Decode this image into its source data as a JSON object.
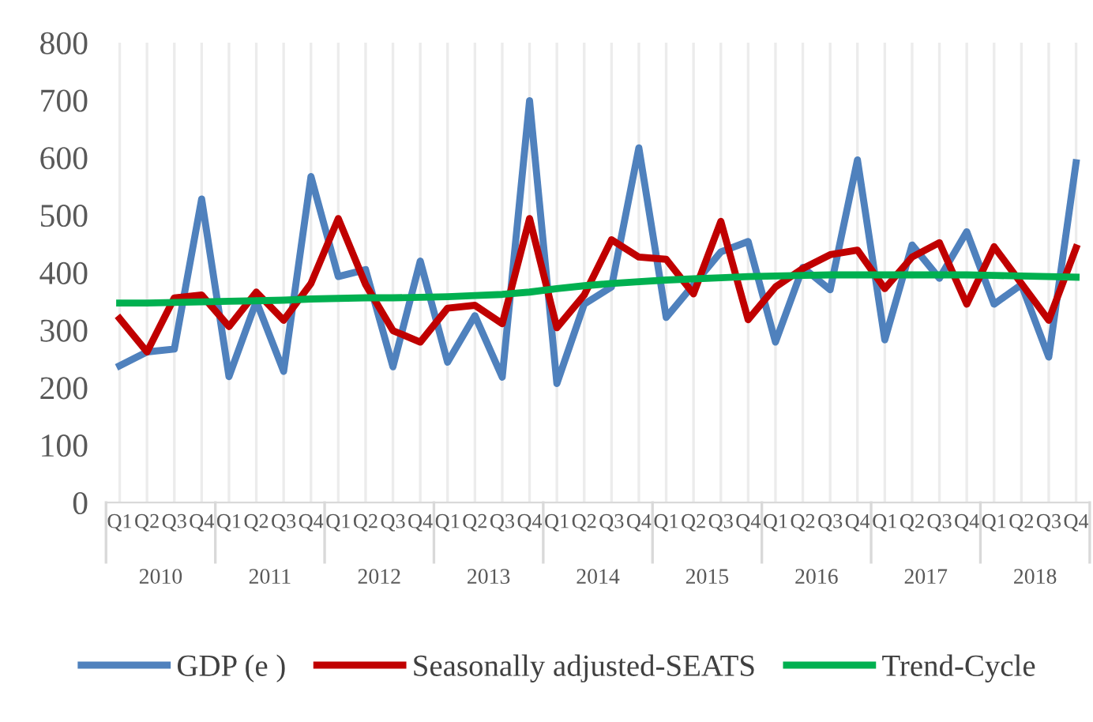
{
  "chart_data": {
    "type": "line",
    "categories": [
      "Q1",
      "Q2",
      "Q3",
      "Q4",
      "Q1",
      "Q2",
      "Q3",
      "Q4",
      "Q1",
      "Q2",
      "Q3",
      "Q4",
      "Q1",
      "Q2",
      "Q3",
      "Q4",
      "Q1",
      "Q2",
      "Q3",
      "Q4",
      "Q1",
      "Q2",
      "Q3",
      "Q4",
      "Q1",
      "Q2",
      "Q3",
      "Q4",
      "Q1",
      "Q2",
      "Q3",
      "Q4",
      "Q1",
      "Q2",
      "Q3",
      "Q4"
    ],
    "annotations": [
      "2010",
      "2011",
      "2012",
      "2013",
      "2014",
      "2015",
      "2016",
      "2017",
      "2018"
    ],
    "series": [
      {
        "name": "GDP (e )",
        "color": "#4f81bd",
        "values": [
          238,
          262,
          267,
          528,
          219,
          350,
          228,
          567,
          393,
          405,
          236,
          420,
          244,
          325,
          218,
          699,
          207,
          345,
          375,
          617,
          322,
          379,
          436,
          454,
          279,
          409,
          370,
          596,
          283,
          448,
          390,
          471,
          345,
          379,
          253,
          591
        ]
      },
      {
        "name": "Seasonally adjusted-SEATS",
        "color": "#c00000",
        "values": [
          320,
          262,
          356,
          361,
          306,
          366,
          317,
          381,
          494,
          379,
          299,
          279,
          338,
          343,
          311,
          494,
          304,
          361,
          457,
          427,
          423,
          363,
          489,
          318,
          375,
          407,
          431,
          439,
          372,
          427,
          452,
          345,
          445,
          381,
          317,
          443
        ]
      },
      {
        "name": "Trend-Cycle",
        "color": "#00b050",
        "values": [
          347,
          347,
          348,
          349,
          350,
          351,
          352,
          354,
          355,
          356,
          356,
          357,
          358,
          360,
          362,
          366,
          372,
          377,
          381,
          384,
          387,
          389,
          391,
          393,
          394,
          395,
          396,
          396,
          396,
          396,
          396,
          396,
          395,
          394,
          393,
          392
        ]
      }
    ],
    "ylim": [
      0,
      800
    ],
    "yticks": [
      0,
      100,
      200,
      300,
      400,
      500,
      600,
      700,
      800
    ],
    "grid": "x",
    "legend": "bottom",
    "marker": "none",
    "line_style": "solid"
  }
}
